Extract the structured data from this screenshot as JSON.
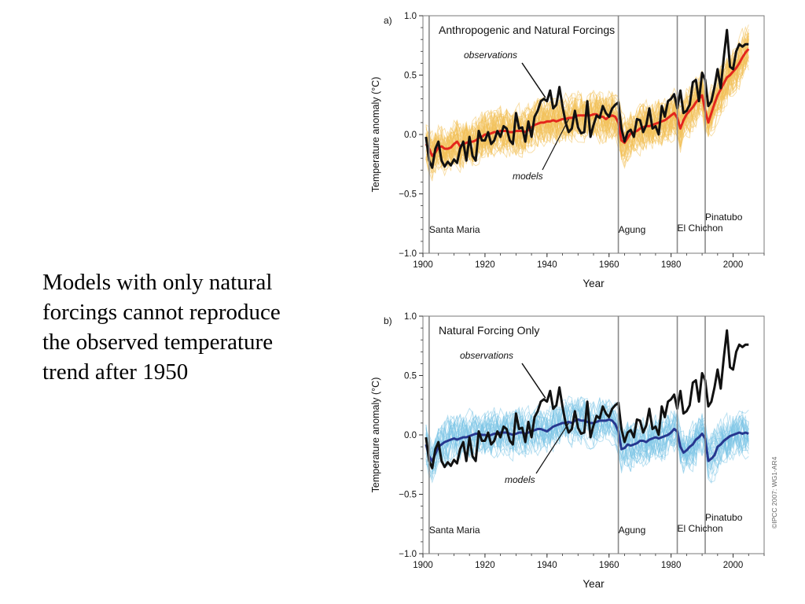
{
  "slide": {
    "text_lines": [
      "Models with only natural",
      "forcings cannot reproduce",
      "the observed temperature",
      "trend after 1950"
    ]
  },
  "credit": "©IPCC 2007: WG1-AR4",
  "colors": {
    "observations": "#111111",
    "panel_a_ensemble": "#f2c15a",
    "panel_a_mean": "#e3261c",
    "panel_b_ensemble": "#7cc5e6",
    "panel_b_mean": "#26378f",
    "volcano_line": "#8a8a8a",
    "frame": "#7a7a7a"
  },
  "chart_data": [
    {
      "type": "line",
      "panel_label": "a)",
      "title": "Anthropogenic and Natural Forcings",
      "xlabel": "Year",
      "ylabel": "Temperature anomaly (°C)",
      "xlim": [
        1900,
        2010
      ],
      "ylim": [
        -1.0,
        1.0
      ],
      "xticks": [
        "1900",
        "1920",
        "1940",
        "1960",
        "1980",
        "2000"
      ],
      "yticks": [
        "1.0",
        "0.5",
        "0.0",
        "−0.5",
        "−1.0"
      ],
      "grid": false,
      "x": [
        1901,
        1902,
        1903,
        1904,
        1905,
        1906,
        1907,
        1908,
        1909,
        1910,
        1911,
        1912,
        1913,
        1914,
        1915,
        1916,
        1917,
        1918,
        1919,
        1920,
        1921,
        1922,
        1923,
        1924,
        1925,
        1926,
        1927,
        1928,
        1929,
        1930,
        1931,
        1932,
        1933,
        1934,
        1935,
        1936,
        1937,
        1938,
        1939,
        1940,
        1941,
        1942,
        1943,
        1944,
        1945,
        1946,
        1947,
        1948,
        1949,
        1950,
        1951,
        1952,
        1953,
        1954,
        1955,
        1956,
        1957,
        1958,
        1959,
        1960,
        1961,
        1962,
        1963,
        1964,
        1965,
        1966,
        1967,
        1968,
        1969,
        1970,
        1971,
        1972,
        1973,
        1974,
        1975,
        1976,
        1977,
        1978,
        1979,
        1980,
        1981,
        1982,
        1983,
        1984,
        1985,
        1986,
        1987,
        1988,
        1989,
        1990,
        1991,
        1992,
        1993,
        1994,
        1995,
        1996,
        1997,
        1998,
        1999,
        2000,
        2001,
        2002,
        2003,
        2004,
        2005
      ],
      "series": [
        {
          "name": "observations",
          "role": "observations",
          "values": [
            -0.02,
            -0.22,
            -0.28,
            -0.12,
            -0.06,
            -0.22,
            -0.27,
            -0.23,
            -0.26,
            -0.21,
            -0.24,
            -0.12,
            -0.06,
            -0.22,
            -0.02,
            -0.18,
            -0.22,
            0.03,
            -0.05,
            -0.05,
            0.02,
            -0.08,
            -0.05,
            0.03,
            -0.02,
            0.07,
            0.05,
            -0.05,
            -0.08,
            0.18,
            0.05,
            0.06,
            -0.06,
            0.11,
            -0.02,
            0.15,
            0.2,
            0.28,
            0.3,
            0.28,
            0.37,
            0.22,
            0.25,
            0.4,
            0.24,
            0.1,
            0.02,
            0.05,
            0.2,
            0.06,
            0.01,
            0.02,
            0.28,
            -0.02,
            0.08,
            0.16,
            0.14,
            0.24,
            0.18,
            0.15,
            0.22,
            0.25,
            0.27,
            0.05,
            -0.06,
            0.02,
            0.04,
            -0.02,
            0.13,
            0.12,
            0.02,
            0.08,
            0.22,
            0.05,
            0.07,
            0.0,
            0.24,
            0.15,
            0.28,
            0.3,
            0.34,
            0.22,
            0.37,
            0.18,
            0.2,
            0.25,
            0.44,
            0.46,
            0.28,
            0.52,
            0.46,
            0.24,
            0.28,
            0.4,
            0.55,
            0.39,
            0.65,
            0.88,
            0.57,
            0.55,
            0.7,
            0.76,
            0.74,
            0.76,
            0.76
          ]
        },
        {
          "name": "models",
          "role": "model_mean",
          "values": [
            -0.08,
            -0.12,
            -0.18,
            -0.15,
            -0.11,
            -0.1,
            -0.12,
            -0.12,
            -0.11,
            -0.08,
            -0.06,
            -0.1,
            -0.08,
            -0.07,
            -0.06,
            -0.06,
            -0.05,
            -0.03,
            -0.02,
            0.0,
            0.0,
            0.01,
            0.02,
            0.02,
            0.03,
            0.03,
            0.03,
            0.02,
            0.02,
            0.03,
            0.03,
            0.03,
            0.02,
            0.04,
            0.06,
            0.08,
            0.09,
            0.1,
            0.1,
            0.11,
            0.11,
            0.12,
            0.11,
            0.12,
            0.13,
            0.13,
            0.14,
            0.14,
            0.15,
            0.16,
            0.16,
            0.16,
            0.16,
            0.16,
            0.17,
            0.17,
            0.15,
            0.15,
            0.13,
            0.15,
            0.16,
            0.15,
            0.1,
            -0.05,
            -0.07,
            -0.03,
            0.01,
            0.02,
            0.03,
            0.05,
            0.06,
            0.07,
            0.07,
            0.08,
            0.09,
            0.1,
            0.11,
            0.12,
            0.14,
            0.16,
            0.18,
            0.14,
            0.05,
            0.12,
            0.17,
            0.2,
            0.23,
            0.27,
            0.3,
            0.33,
            0.2,
            0.1,
            0.18,
            0.26,
            0.33,
            0.38,
            0.43,
            0.48,
            0.5,
            0.53,
            0.56,
            0.6,
            0.65,
            0.69,
            0.72
          ]
        }
      ],
      "annotations": [
        {
          "text": "observations"
        },
        {
          "text": "models"
        }
      ],
      "volcanoes": [
        {
          "name": "Santa Maria",
          "year": 1902
        },
        {
          "name": "Agung",
          "year": 1963
        },
        {
          "name": "El Chichon",
          "year": 1982
        },
        {
          "name": "Pinatubo",
          "year": 1991
        }
      ]
    },
    {
      "type": "line",
      "panel_label": "b)",
      "title": "Natural Forcing Only",
      "xlabel": "Year",
      "ylabel": "Temperature anomaly (°C)",
      "xlim": [
        1900,
        2010
      ],
      "ylim": [
        -1.0,
        1.0
      ],
      "xticks": [
        "1900",
        "1920",
        "1940",
        "1960",
        "1980",
        "2000"
      ],
      "yticks": [
        "1.0",
        "0.5",
        "0.0",
        "−0.5",
        "−1.0"
      ],
      "grid": false,
      "x": [
        1901,
        1902,
        1903,
        1904,
        1905,
        1906,
        1907,
        1908,
        1909,
        1910,
        1911,
        1912,
        1913,
        1914,
        1915,
        1916,
        1917,
        1918,
        1919,
        1920,
        1921,
        1922,
        1923,
        1924,
        1925,
        1926,
        1927,
        1928,
        1929,
        1930,
        1931,
        1932,
        1933,
        1934,
        1935,
        1936,
        1937,
        1938,
        1939,
        1940,
        1941,
        1942,
        1943,
        1944,
        1945,
        1946,
        1947,
        1948,
        1949,
        1950,
        1951,
        1952,
        1953,
        1954,
        1955,
        1956,
        1957,
        1958,
        1959,
        1960,
        1961,
        1962,
        1963,
        1964,
        1965,
        1966,
        1967,
        1968,
        1969,
        1970,
        1971,
        1972,
        1973,
        1974,
        1975,
        1976,
        1977,
        1978,
        1979,
        1980,
        1981,
        1982,
        1983,
        1984,
        1985,
        1986,
        1987,
        1988,
        1989,
        1990,
        1991,
        1992,
        1993,
        1994,
        1995,
        1996,
        1997,
        1998,
        1999,
        2000,
        2001,
        2002,
        2003,
        2004,
        2005
      ],
      "series": [
        {
          "name": "observations",
          "role": "observations",
          "values": [
            -0.02,
            -0.22,
            -0.28,
            -0.12,
            -0.06,
            -0.22,
            -0.27,
            -0.23,
            -0.26,
            -0.21,
            -0.24,
            -0.12,
            -0.06,
            -0.22,
            -0.02,
            -0.18,
            -0.22,
            0.03,
            -0.05,
            -0.05,
            0.02,
            -0.08,
            -0.05,
            0.03,
            -0.02,
            0.07,
            0.05,
            -0.05,
            -0.08,
            0.18,
            0.05,
            0.06,
            -0.06,
            0.11,
            -0.02,
            0.15,
            0.2,
            0.28,
            0.3,
            0.28,
            0.37,
            0.22,
            0.25,
            0.4,
            0.24,
            0.1,
            0.02,
            0.05,
            0.2,
            0.06,
            0.01,
            0.02,
            0.28,
            -0.02,
            0.08,
            0.16,
            0.14,
            0.24,
            0.18,
            0.15,
            0.22,
            0.25,
            0.27,
            0.05,
            -0.06,
            0.02,
            0.04,
            -0.02,
            0.13,
            0.12,
            0.02,
            0.08,
            0.22,
            0.05,
            0.07,
            0.0,
            0.24,
            0.15,
            0.28,
            0.3,
            0.34,
            0.22,
            0.37,
            0.18,
            0.2,
            0.25,
            0.44,
            0.46,
            0.28,
            0.52,
            0.46,
            0.24,
            0.28,
            0.4,
            0.55,
            0.39,
            0.65,
            0.88,
            0.57,
            0.55,
            0.7,
            0.76,
            0.74,
            0.76,
            0.76
          ]
        },
        {
          "name": "models",
          "role": "model_mean",
          "values": [
            -0.08,
            -0.18,
            -0.22,
            -0.16,
            -0.1,
            -0.08,
            -0.06,
            -0.05,
            -0.04,
            -0.03,
            -0.04,
            -0.03,
            -0.02,
            -0.02,
            -0.01,
            0.0,
            0.01,
            0.01,
            0.0,
            0.0,
            -0.01,
            0.0,
            0.01,
            0.01,
            0.02,
            0.02,
            0.02,
            0.01,
            0.0,
            0.01,
            0.02,
            0.02,
            0.01,
            0.02,
            0.03,
            0.04,
            0.05,
            0.05,
            0.04,
            0.03,
            0.05,
            0.07,
            0.08,
            0.09,
            0.1,
            0.1,
            0.11,
            0.1,
            0.12,
            0.13,
            0.12,
            0.12,
            0.11,
            0.1,
            0.1,
            0.11,
            0.12,
            0.12,
            0.12,
            0.13,
            0.12,
            0.09,
            0.03,
            -0.12,
            -0.11,
            -0.08,
            -0.09,
            -0.08,
            -0.07,
            -0.05,
            -0.05,
            -0.06,
            -0.04,
            -0.03,
            -0.02,
            -0.03,
            -0.02,
            -0.01,
            0.0,
            0.02,
            0.05,
            0.03,
            -0.1,
            -0.15,
            -0.13,
            -0.1,
            -0.08,
            -0.04,
            -0.02,
            0.01,
            -0.03,
            -0.22,
            -0.2,
            -0.17,
            -0.1,
            -0.08,
            -0.05,
            -0.03,
            -0.01,
            0.0,
            0.01,
            0.02,
            0.01,
            0.02,
            0.01
          ]
        }
      ],
      "annotations": [
        {
          "text": "observations"
        },
        {
          "text": "models"
        }
      ],
      "volcanoes": [
        {
          "name": "Santa Maria",
          "year": 1902
        },
        {
          "name": "Agung",
          "year": 1963
        },
        {
          "name": "El Chichon",
          "year": 1982
        },
        {
          "name": "Pinatubo",
          "year": 1991
        }
      ]
    }
  ]
}
